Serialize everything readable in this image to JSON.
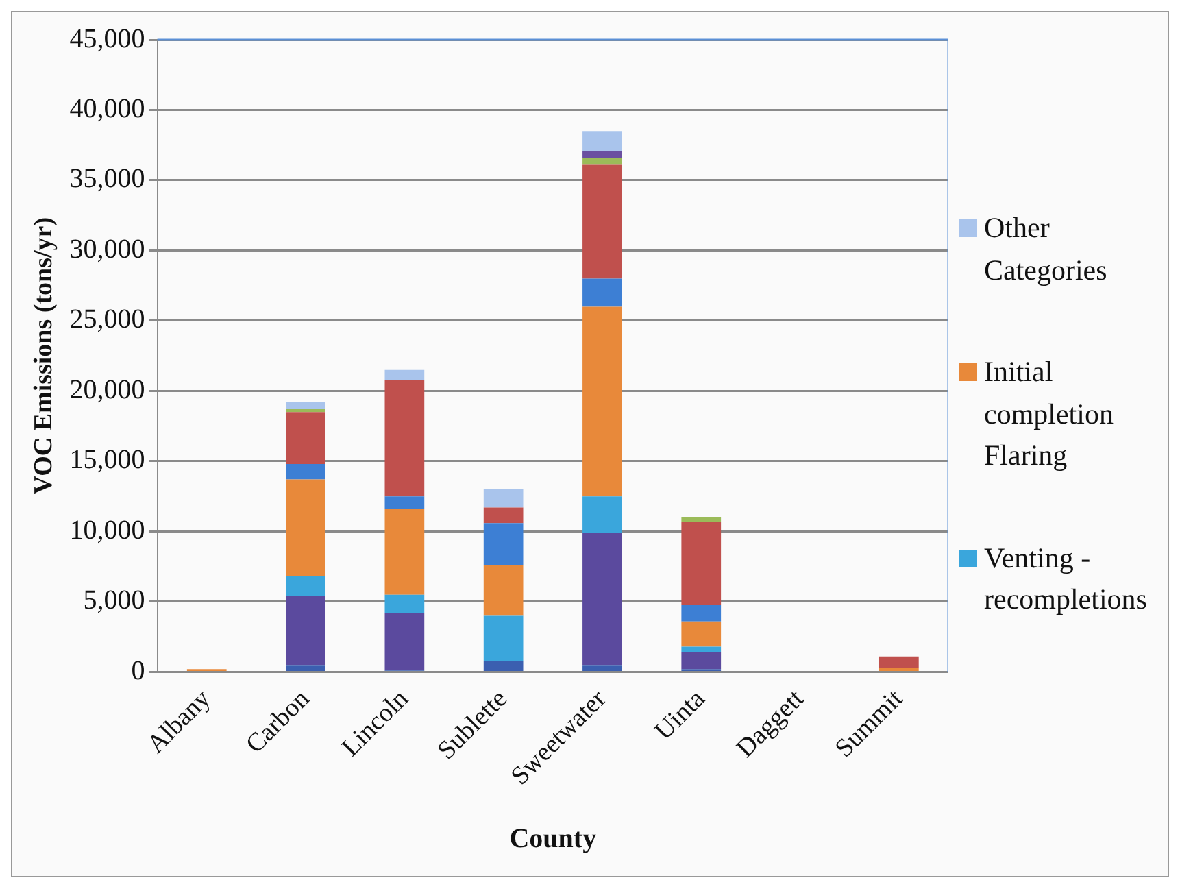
{
  "chart_data": {
    "type": "bar",
    "stacked": true,
    "xlabel": "County",
    "ylabel": "VOC Emissions (tons/yr)",
    "categories": [
      "Albany",
      "Carbon",
      "Lincoln",
      "Sublette",
      "Sweetwater",
      "Uinta",
      "Daggett",
      "Summit"
    ],
    "ylim": [
      0,
      45000
    ],
    "yticks": [
      {
        "value": 0,
        "label": "0"
      },
      {
        "value": 5000,
        "label": "5,000"
      },
      {
        "value": 10000,
        "label": "10,000"
      },
      {
        "value": 15000,
        "label": "15,000"
      },
      {
        "value": 20000,
        "label": "20,000"
      },
      {
        "value": 25000,
        "label": "25,000"
      },
      {
        "value": 30000,
        "label": "30,000"
      },
      {
        "value": 35000,
        "label": "35,000"
      },
      {
        "value": 40000,
        "label": "40,000"
      },
      {
        "value": 45000,
        "label": "45,000"
      }
    ],
    "grid": "y",
    "legend": "right",
    "series": [
      {
        "color": "#3b5fb0",
        "values": [
          0,
          500,
          100,
          800,
          500,
          200,
          0,
          0
        ]
      },
      {
        "color": "#5b4a9e",
        "values": [
          0,
          4900,
          4100,
          0,
          9400,
          1200,
          0,
          0
        ]
      },
      {
        "name": "Venting - recompletions",
        "color": "#3aa6dc",
        "values": [
          0,
          1400,
          1300,
          3200,
          2600,
          400,
          0,
          0
        ]
      },
      {
        "name": "Initial completion Flaring",
        "color": "#e8893a",
        "values": [
          200,
          6900,
          6100,
          3600,
          13500,
          1800,
          0,
          300
        ]
      },
      {
        "color": "#3d7fd4",
        "values": [
          0,
          1100,
          900,
          3000,
          2000,
          1200,
          0,
          0
        ]
      },
      {
        "color": "#c0504d",
        "values": [
          0,
          3700,
          8300,
          1100,
          8100,
          5900,
          0,
          800
        ]
      },
      {
        "color": "#9bbb59",
        "values": [
          0,
          200,
          0,
          0,
          500,
          300,
          0,
          0
        ]
      },
      {
        "color": "#6a4fa0",
        "values": [
          0,
          0,
          0,
          0,
          500,
          0,
          0,
          0
        ]
      },
      {
        "name": "Other Categories",
        "color": "#a9c4ec",
        "values": [
          0,
          500,
          700,
          1300,
          1400,
          0,
          0,
          0
        ]
      }
    ]
  }
}
